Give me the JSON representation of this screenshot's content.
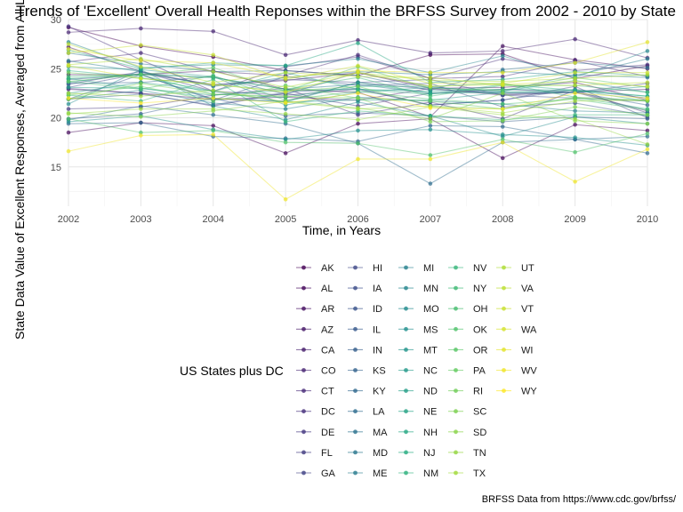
{
  "chart_data": {
    "type": "line",
    "title": "Trends of 'Excellent' Overall Health Reponses within the BRFSS Survey from 2002 - 2010 by State",
    "xlabel": "Time, in Years",
    "ylabel": "State Data Value of Excellent Responses, Averaged from All Locations",
    "legend_title": "US States plus DC",
    "caption": "BRFSS Data from https://www.cdc.gov/brfss/",
    "x": [
      2002,
      2003,
      2004,
      2005,
      2006,
      2007,
      2008,
      2009,
      2010
    ],
    "xlim": [
      2002,
      2010
    ],
    "ylim": [
      11.0,
      30.0
    ],
    "yticks": [
      15,
      20,
      25,
      30
    ],
    "grid": true,
    "legend_position": "bottom",
    "color_scale": "viridis",
    "series": [
      {
        "name": "AK",
        "values": [
          29.2,
          27.3,
          26.2,
          24.8,
          24.3,
          26.4,
          26.5,
          24.0,
          25.3
        ]
      },
      {
        "name": "AL",
        "values": [
          18.5,
          19.5,
          19.2,
          16.4,
          19.4,
          19.9,
          15.9,
          19.3,
          18.7
        ]
      },
      {
        "name": "AR",
        "values": [
          24.4,
          24.4,
          24.8,
          22.9,
          22.6,
          20.1,
          27.3,
          25.9,
          25.0
        ]
      },
      {
        "name": "AZ",
        "values": [
          27.2,
          24.7,
          23.3,
          23.8,
          24.6,
          23.0,
          23.1,
          23.6,
          21.8
        ]
      },
      {
        "name": "CA",
        "values": [
          22.9,
          22.5,
          21.9,
          22.1,
          21.8,
          23.0,
          22.3,
          22.6,
          22.9
        ]
      },
      {
        "name": "CO",
        "values": [
          28.7,
          29.1,
          28.8,
          26.4,
          27.9,
          26.6,
          26.8,
          28.0,
          26.1
        ]
      },
      {
        "name": "CT",
        "values": [
          25.7,
          26.6,
          24.7,
          24.3,
          26.4,
          24.0,
          24.2,
          25.8,
          24.2
        ]
      },
      {
        "name": "DC",
        "values": [
          29.3,
          25.9,
          22.7,
          25.2,
          26.2,
          24.0,
          26.0,
          24.8,
          25.4
        ]
      },
      {
        "name": "DE",
        "values": [
          20.9,
          21.1,
          22.3,
          23.0,
          20.3,
          21.6,
          19.9,
          22.8,
          20.5
        ]
      },
      {
        "name": "FL",
        "values": [
          23.0,
          22.5,
          21.2,
          22.5,
          21.2,
          22.5,
          22.9,
          22.6,
          20.7
        ]
      },
      {
        "name": "GA",
        "values": [
          23.4,
          24.7,
          22.7,
          22.3,
          22.9,
          21.3,
          21.8,
          23.2,
          20.0
        ]
      },
      {
        "name": "HI",
        "values": [
          23.1,
          24.5,
          23.4,
          23.9,
          23.6,
          22.9,
          22.5,
          22.6,
          23.5
        ]
      },
      {
        "name": "IA",
        "values": [
          23.9,
          24.4,
          21.9,
          21.7,
          23.6,
          23.9,
          22.3,
          22.0,
          21.7
        ]
      },
      {
        "name": "ID",
        "values": [
          21.9,
          24.4,
          21.8,
          24.2,
          23.3,
          23.5,
          21.1,
          21.5,
          20.2
        ]
      },
      {
        "name": "IL",
        "values": [
          21.9,
          22.4,
          21.3,
          22.6,
          23.0,
          21.3,
          21.8,
          22.9,
          22.0
        ]
      },
      {
        "name": "IN",
        "values": [
          19.9,
          20.4,
          22.0,
          20.2,
          20.5,
          20.2,
          19.6,
          20.1,
          19.9
        ]
      },
      {
        "name": "KS",
        "values": [
          23.5,
          23.6,
          24.2,
          22.4,
          24.6,
          23.2,
          22.4,
          22.6,
          21.3
        ]
      },
      {
        "name": "KY",
        "values": [
          19.4,
          19.5,
          18.1,
          17.9,
          17.6,
          19.2,
          19.1,
          17.8,
          16.4
        ]
      },
      {
        "name": "LA",
        "values": [
          19.8,
          21.2,
          20.3,
          19.4,
          17.4,
          13.3,
          17.5,
          17.8,
          18.1
        ]
      },
      {
        "name": "MA",
        "values": [
          26.6,
          25.5,
          24.7,
          24.8,
          24.3,
          22.8,
          24.9,
          25.6,
          25.1
        ]
      },
      {
        "name": "MD",
        "values": [
          23.6,
          24.5,
          24.1,
          22.9,
          23.4,
          22.5,
          22.7,
          24.4,
          24.1
        ]
      },
      {
        "name": "ME",
        "values": [
          25.8,
          24.7,
          23.2,
          24.1,
          24.7,
          24.4,
          24.7,
          24.3,
          26.0
        ]
      },
      {
        "name": "MI",
        "values": [
          21.9,
          22.8,
          21.5,
          20.9,
          22.1,
          21.7,
          21.4,
          20.7,
          20.5
        ]
      },
      {
        "name": "MN",
        "values": [
          27.7,
          25.1,
          25.4,
          25.3,
          26.0,
          24.6,
          26.3,
          24.1,
          26.8
        ]
      },
      {
        "name": "MO",
        "values": [
          21.4,
          24.9,
          21.2,
          19.8,
          21.6,
          20.2,
          18.1,
          20.1,
          19.4
        ]
      },
      {
        "name": "MS",
        "values": [
          19.6,
          20.2,
          18.8,
          17.8,
          18.7,
          18.8,
          18.3,
          18.0,
          17.2
        ]
      },
      {
        "name": "MT",
        "values": [
          25.2,
          24.9,
          24.2,
          21.3,
          22.6,
          23.1,
          22.7,
          23.8,
          22.6
        ]
      },
      {
        "name": "NC",
        "values": [
          22.5,
          23.6,
          22.7,
          21.6,
          21.8,
          21.8,
          22.6,
          22.6,
          23.2
        ]
      },
      {
        "name": "ND",
        "values": [
          23.1,
          23.0,
          22.3,
          22.8,
          22.9,
          22.7,
          22.9,
          22.8,
          22.2
        ]
      },
      {
        "name": "NE",
        "values": [
          24.0,
          23.0,
          22.0,
          21.6,
          23.6,
          22.5,
          22.6,
          22.8,
          21.7
        ]
      },
      {
        "name": "NH",
        "values": [
          26.9,
          25.0,
          25.6,
          25.3,
          27.6,
          23.6,
          23.9,
          24.7,
          24.3
        ]
      },
      {
        "name": "NJ",
        "values": [
          24.8,
          24.1,
          22.7,
          24.6,
          22.9,
          22.4,
          23.4,
          22.8,
          22.2
        ]
      },
      {
        "name": "NM",
        "values": [
          24.0,
          24.4,
          22.4,
          22.1,
          23.2,
          23.2,
          23.5,
          22.1,
          20.9
        ]
      },
      {
        "name": "NV",
        "values": [
          22.3,
          21.7,
          23.9,
          19.6,
          20.7,
          20.2,
          19.8,
          20.3,
          20.3
        ]
      },
      {
        "name": "NY",
        "values": [
          24.2,
          24.4,
          24.1,
          22.9,
          24.1,
          22.2,
          23.3,
          23.3,
          22.6
        ]
      },
      {
        "name": "OH",
        "values": [
          23.7,
          22.9,
          24.3,
          21.8,
          22.7,
          21.9,
          21.4,
          21.9,
          20.8
        ]
      },
      {
        "name": "OK",
        "values": [
          19.9,
          18.5,
          18.7,
          17.5,
          17.4,
          16.2,
          17.8,
          16.5,
          18.4
        ]
      },
      {
        "name": "OR",
        "values": [
          23.7,
          24.4,
          25.1,
          22.7,
          25.2,
          23.0,
          22.8,
          24.1,
          23.1
        ]
      },
      {
        "name": "PA",
        "values": [
          22.3,
          23.2,
          21.7,
          23.3,
          22.0,
          21.7,
          20.9,
          22.1,
          21.8
        ]
      },
      {
        "name": "RI",
        "values": [
          24.6,
          24.0,
          23.4,
          22.7,
          23.2,
          21.2,
          20.9,
          22.0,
          21.7
        ]
      },
      {
        "name": "SC",
        "values": [
          21.9,
          23.5,
          22.4,
          22.2,
          22.0,
          19.6,
          19.7,
          21.1,
          20.3
        ]
      },
      {
        "name": "SD",
        "values": [
          20.5,
          20.1,
          20.7,
          21.7,
          21.0,
          19.9,
          22.5,
          19.7,
          19.4
        ]
      },
      {
        "name": "TN",
        "values": [
          20.4,
          20.9,
          20.9,
          20.4,
          19.8,
          21.1,
          20.3,
          19.9,
          17.3
        ]
      },
      {
        "name": "TX",
        "values": [
          22.5,
          22.2,
          22.8,
          21.6,
          20.9,
          21.2,
          20.5,
          21.7,
          21.8
        ]
      },
      {
        "name": "UT",
        "values": [
          25.4,
          26.0,
          24.7,
          23.1,
          24.6,
          23.8,
          23.7,
          24.0,
          24.4
        ]
      },
      {
        "name": "VA",
        "values": [
          27.5,
          25.2,
          23.6,
          24.6,
          24.2,
          24.1,
          23.3,
          23.3,
          23.6
        ]
      },
      {
        "name": "VT",
        "values": [
          26.6,
          27.4,
          26.4,
          23.9,
          25.3,
          23.5,
          23.5,
          24.6,
          24.6
        ]
      },
      {
        "name": "WA",
        "values": [
          25.3,
          24.0,
          23.4,
          22.6,
          24.6,
          23.2,
          23.4,
          23.7,
          23.2
        ]
      },
      {
        "name": "WI",
        "values": [
          27.0,
          25.8,
          25.6,
          24.1,
          24.8,
          24.6,
          24.6,
          25.6,
          27.7
        ]
      },
      {
        "name": "WV",
        "values": [
          16.6,
          18.2,
          18.3,
          11.7,
          15.8,
          15.8,
          17.5,
          13.5,
          16.8
        ]
      },
      {
        "name": "WY",
        "values": [
          22.0,
          21.5,
          22.0,
          21.5,
          22.5,
          21.0,
          20.9,
          22.5,
          22.0
        ]
      }
    ]
  }
}
